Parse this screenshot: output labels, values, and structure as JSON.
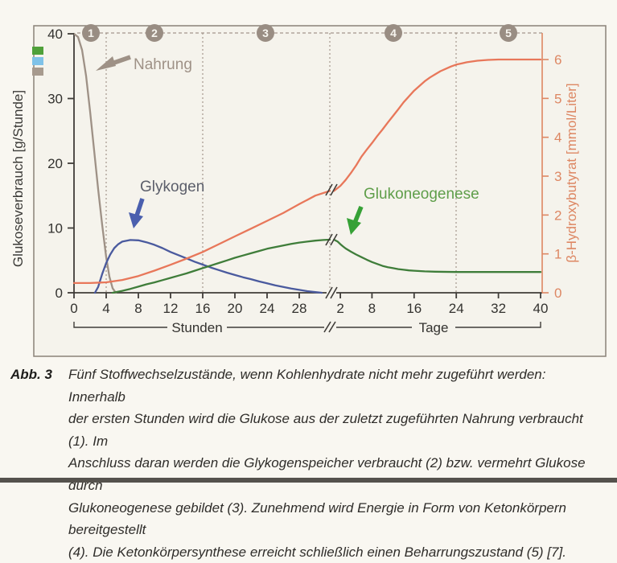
{
  "figure": {
    "label": "Abb. 3",
    "caption_lines": [
      "Fünf Stoffwechselzustände, wenn Kohlenhydrate nicht mehr zugeführt werden: Innerhalb",
      "der ersten Stunden wird die Glukose aus der zuletzt zugeführten Nahrung verbraucht (1). Im",
      "Anschluss daran werden die Glykogenspeicher verbraucht (2) bzw. vermehrt Glukose durch",
      "Glukoneogenese gebildet (3). Zunehmend wird Energie in Form von Ketonkörpern bereitgestellt",
      "(4). Die Ketonkörpersynthese erreicht schließlich einen Beharrungszustand (5) [7]."
    ]
  },
  "chart": {
    "left_axis": {
      "title": "Glukoseverbrauch [g/Stunde]",
      "ticks": [
        40,
        30,
        20,
        10,
        0
      ]
    },
    "right_axis": {
      "title": "β-Hydroxybutyrat [mmol/Liter]",
      "ticks": [
        6,
        5,
        4,
        3,
        2,
        1,
        0
      ]
    },
    "x_axis": {
      "hours_label": "Stunden",
      "days_label": "Tage",
      "hours_ticks": [
        0,
        4,
        8,
        12,
        16,
        20,
        24,
        28
      ],
      "days_ticks": [
        2,
        8,
        16,
        24,
        32,
        40
      ]
    },
    "phases": [
      "1",
      "2",
      "3",
      "4",
      "5"
    ],
    "annotations": {
      "nahrung": "Nahrung",
      "glykogen": "Glykogen",
      "glukoneogenese": "Glukoneogenese"
    },
    "legend_colors": [
      "#4fa03a",
      "#7fc2e8",
      "#a79a8e"
    ],
    "colors": {
      "nahrung": "#9e9186",
      "glykogen": "#4a5a9e",
      "glukoneogenese": "#3f7d3a",
      "bhb": "#e8775a",
      "right_axis": "#dd8763",
      "phase_circle": "#998d83",
      "dashed": "#a3968b",
      "axis": "#3f3c38"
    }
  },
  "chart_data": {
    "type": "line",
    "title": "",
    "left_ylabel": "Glukoseverbrauch [g/Stunde]",
    "left_ylim": [
      0,
      40
    ],
    "right_ylabel": "β-Hydroxybutyrat [mmol/Liter]",
    "right_ylim": [
      0,
      6
    ],
    "x_segments": [
      {
        "unit": "hours",
        "label": "Stunden",
        "range": [
          0,
          31
        ]
      },
      {
        "unit": "days",
        "label": "Tage",
        "range": [
          0,
          40
        ]
      }
    ],
    "axis_break_between_segments": true,
    "phase_dividers": [
      {
        "unit": "hours",
        "x": 4
      },
      {
        "unit": "hours",
        "x": 16
      },
      {
        "unit": "break",
        "x": null
      },
      {
        "unit": "days",
        "x": 24
      }
    ],
    "series": [
      {
        "name": "Nahrung",
        "color": "#9e9186",
        "axis": "left",
        "x_unit": "hours",
        "points": [
          [
            0,
            40
          ],
          [
            0.5,
            39.5
          ],
          [
            1,
            37.5
          ],
          [
            1.5,
            33.5
          ],
          [
            2,
            28
          ],
          [
            2.5,
            22
          ],
          [
            3,
            16
          ],
          [
            3.5,
            10.5
          ],
          [
            4,
            5.5
          ],
          [
            4.4,
            2.5
          ],
          [
            4.8,
            0.7
          ],
          [
            5.2,
            0
          ]
        ]
      },
      {
        "name": "Glykogen",
        "color": "#4a5a9e",
        "axis": "left",
        "x_unit": "hours",
        "points": [
          [
            2.6,
            0
          ],
          [
            3,
            0.9
          ],
          [
            3.5,
            2.9
          ],
          [
            4,
            4.6
          ],
          [
            4.5,
            5.9
          ],
          [
            5,
            6.9
          ],
          [
            5.5,
            7.5
          ],
          [
            6,
            7.9
          ],
          [
            7,
            8.15
          ],
          [
            8,
            8.1
          ],
          [
            9,
            7.8
          ],
          [
            10,
            7.4
          ],
          [
            11,
            6.9
          ],
          [
            12,
            6.3
          ],
          [
            13,
            5.8
          ],
          [
            14,
            5.3
          ],
          [
            15,
            4.8
          ],
          [
            16,
            4.35
          ],
          [
            17,
            3.9
          ],
          [
            18,
            3.5
          ],
          [
            19,
            3.1
          ],
          [
            20,
            2.75
          ],
          [
            21,
            2.4
          ],
          [
            22,
            2.1
          ],
          [
            23,
            1.75
          ],
          [
            24,
            1.45
          ],
          [
            25,
            1.15
          ],
          [
            26,
            0.9
          ],
          [
            27,
            0.65
          ],
          [
            28,
            0.45
          ],
          [
            29,
            0.25
          ],
          [
            30,
            0.1
          ],
          [
            30.8,
            0
          ]
        ]
      },
      {
        "name": "Glukoneogenese Stunden",
        "color": "#3f7d3a",
        "axis": "left",
        "x_unit": "hours",
        "points": [
          [
            4.8,
            0
          ],
          [
            6,
            0.3
          ],
          [
            7,
            0.6
          ],
          [
            8,
            0.95
          ],
          [
            9,
            1.3
          ],
          [
            10,
            1.6
          ],
          [
            11,
            1.95
          ],
          [
            12,
            2.3
          ],
          [
            13,
            2.65
          ],
          [
            14,
            3.0
          ],
          [
            15,
            3.4
          ],
          [
            16,
            3.8
          ],
          [
            17,
            4.2
          ],
          [
            18,
            4.6
          ],
          [
            19,
            5.0
          ],
          [
            20,
            5.4
          ],
          [
            21,
            5.75
          ],
          [
            22,
            6.1
          ],
          [
            23,
            6.45
          ],
          [
            24,
            6.8
          ],
          [
            25,
            7.05
          ],
          [
            26,
            7.3
          ],
          [
            27,
            7.55
          ],
          [
            28,
            7.75
          ],
          [
            29,
            7.9
          ],
          [
            30,
            8.05
          ],
          [
            31,
            8.15
          ],
          [
            31.8,
            8.2
          ]
        ]
      },
      {
        "name": "Glukoneogenese Tage",
        "color": "#3f7d3a",
        "axis": "left",
        "x_unit": "days",
        "points": [
          [
            0.8,
            8.2
          ],
          [
            1.5,
            7.9
          ],
          [
            2,
            7.5
          ],
          [
            2.5,
            7.15
          ],
          [
            3,
            6.85
          ],
          [
            3.5,
            6.6
          ],
          [
            4,
            6.35
          ],
          [
            5,
            5.9
          ],
          [
            6,
            5.5
          ],
          [
            7,
            5.1
          ],
          [
            8,
            4.75
          ],
          [
            9,
            4.45
          ],
          [
            10,
            4.15
          ],
          [
            11,
            3.95
          ],
          [
            12,
            3.8
          ],
          [
            13,
            3.65
          ],
          [
            14,
            3.55
          ],
          [
            15,
            3.45
          ],
          [
            16,
            3.4
          ],
          [
            18,
            3.3
          ],
          [
            20,
            3.25
          ],
          [
            24,
            3.2
          ],
          [
            28,
            3.2
          ],
          [
            32,
            3.2
          ],
          [
            36,
            3.2
          ],
          [
            40,
            3.2
          ]
        ]
      },
      {
        "name": "β-Hydroxybutyrat Stunden",
        "color": "#e8775a",
        "axis": "right",
        "x_unit": "hours",
        "points": [
          [
            0,
            0.25
          ],
          [
            2,
            0.25
          ],
          [
            4,
            0.27
          ],
          [
            6,
            0.33
          ],
          [
            8,
            0.43
          ],
          [
            10,
            0.57
          ],
          [
            12,
            0.72
          ],
          [
            14,
            0.88
          ],
          [
            16,
            1.05
          ],
          [
            18,
            1.25
          ],
          [
            20,
            1.45
          ],
          [
            22,
            1.65
          ],
          [
            24,
            1.85
          ],
          [
            26,
            2.05
          ],
          [
            28,
            2.28
          ],
          [
            30,
            2.5
          ],
          [
            31.8,
            2.62
          ]
        ]
      },
      {
        "name": "β-Hydroxybutyrat Tage",
        "color": "#e8775a",
        "axis": "right",
        "x_unit": "days",
        "points": [
          [
            0.8,
            2.62
          ],
          [
            2,
            2.75
          ],
          [
            3,
            2.9
          ],
          [
            4,
            3.08
          ],
          [
            5,
            3.28
          ],
          [
            6,
            3.5
          ],
          [
            7,
            3.68
          ],
          [
            8,
            3.85
          ],
          [
            9,
            4.03
          ],
          [
            10,
            4.2
          ],
          [
            11,
            4.38
          ],
          [
            12,
            4.55
          ],
          [
            13,
            4.72
          ],
          [
            14,
            4.9
          ],
          [
            15,
            5.05
          ],
          [
            16,
            5.2
          ],
          [
            17,
            5.32
          ],
          [
            18,
            5.44
          ],
          [
            19,
            5.54
          ],
          [
            20,
            5.62
          ],
          [
            21,
            5.7
          ],
          [
            22,
            5.76
          ],
          [
            23,
            5.82
          ],
          [
            24,
            5.87
          ],
          [
            25,
            5.9
          ],
          [
            26,
            5.93
          ],
          [
            28,
            5.97
          ],
          [
            30,
            5.99
          ],
          [
            32,
            6.0
          ],
          [
            36,
            6.0
          ],
          [
            40,
            6.0
          ]
        ]
      }
    ]
  }
}
